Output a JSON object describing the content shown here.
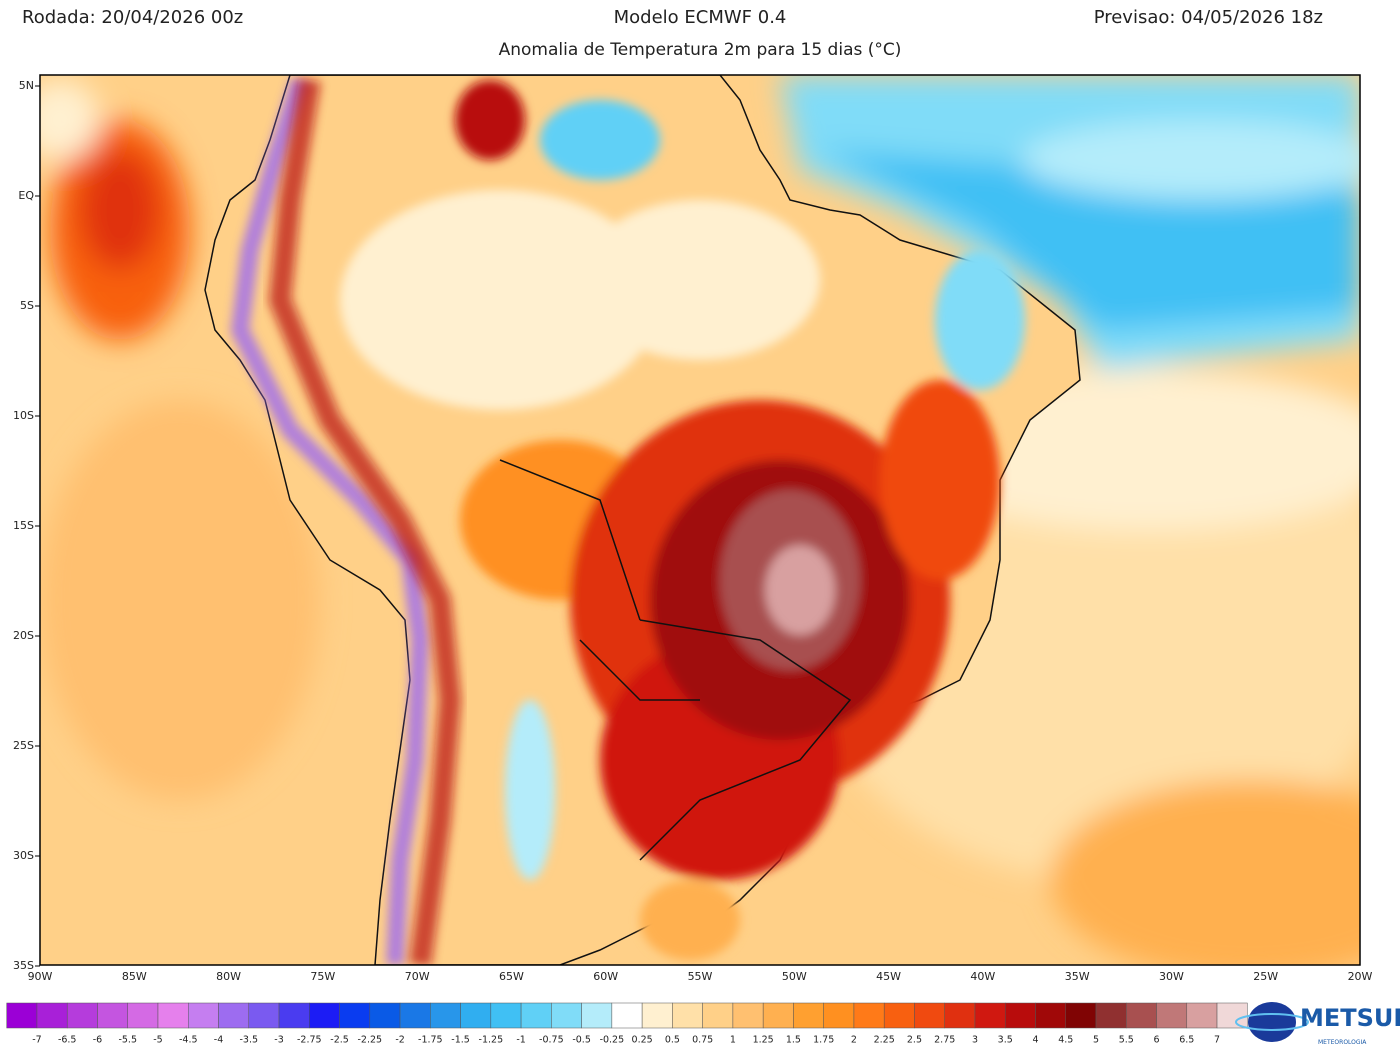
{
  "header": {
    "left": "Rodada: 20/04/2026 00z",
    "center": "Modelo ECMWF 0.4",
    "right": "Previsao: 04/05/2026 18z",
    "subtitle": "Anomalia de Temperatura 2m para 15 dias (°C)"
  },
  "map": {
    "lat_labels": [
      "5N",
      "EQ",
      "5S",
      "10S",
      "15S",
      "20S",
      "25S",
      "30S",
      "35S"
    ],
    "lon_labels": [
      "90W",
      "85W",
      "80W",
      "75W",
      "70W",
      "65W",
      "60W",
      "55W",
      "50W",
      "45W",
      "40W",
      "35W",
      "30W",
      "25W",
      "20W"
    ]
  },
  "colorbar": {
    "levels": [
      -7,
      -6.5,
      -6,
      -5.5,
      -5,
      -4.5,
      -4,
      -3.5,
      -3,
      -2.75,
      -2.5,
      -2.25,
      -2,
      -1.75,
      -1.5,
      -1.25,
      -1,
      -0.75,
      -0.5,
      -0.25,
      0.25,
      0.5,
      0.75,
      1,
      1.25,
      1.5,
      1.75,
      2,
      2.25,
      2.5,
      2.75,
      3,
      3.5,
      4,
      4.5,
      5,
      5.5,
      6,
      6.5,
      7
    ],
    "colors": [
      "#9b00d6",
      "#a820d8",
      "#b53cdc",
      "#c455e0",
      "#d46ae4",
      "#e580ec",
      "#c57ef0",
      "#9d6cf0",
      "#7a5af0",
      "#4a3cf0",
      "#1c1cf5",
      "#0a3cf0",
      "#0a5ae6",
      "#1a78e6",
      "#2896ea",
      "#30aef0",
      "#40c0f4",
      "#60d0f6",
      "#80dcf8",
      "#b4ecfa",
      "#ffffff",
      "#fff0d0",
      "#ffe0a8",
      "#ffd088",
      "#ffc070",
      "#ffb050",
      "#ffa030",
      "#ff9020",
      "#ff7a18",
      "#f86010",
      "#f04a10",
      "#e03010",
      "#d01810",
      "#b80c0c",
      "#a00808",
      "#800404",
      "#903030",
      "#a85050",
      "#c07878",
      "#d8a0a0",
      "#f0d8d8"
    ]
  },
  "logo": {
    "name": "METSUL",
    "tagline": "METEOROLOGIA"
  }
}
